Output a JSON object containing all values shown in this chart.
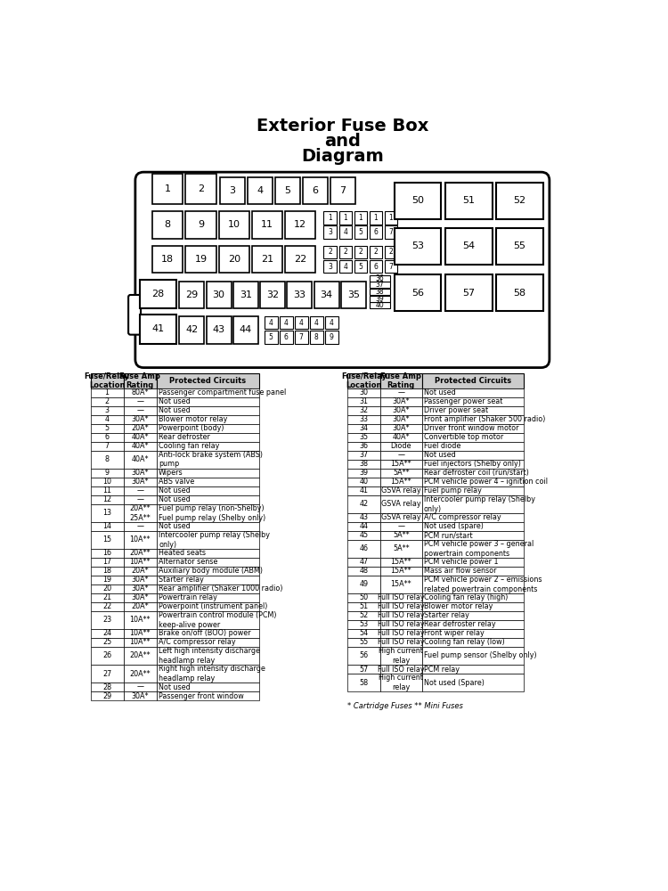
{
  "title_line1": "Exterior Fuse Box",
  "title_line2": "and",
  "title_line3": "Diagram",
  "bg_color": "#ffffff",
  "table1_headers": [
    "Fuse/Relay\nLocation",
    "Fuse Amp\nRating",
    "Protected Circuits"
  ],
  "table1_rows": [
    [
      "1",
      "80A*",
      "Passenger compartment fuse panel"
    ],
    [
      "2",
      "—",
      "Not used"
    ],
    [
      "3",
      "—",
      "Not used"
    ],
    [
      "4",
      "30A*",
      "Blower motor relay"
    ],
    [
      "5",
      "20A*",
      "Powerpoint (body)"
    ],
    [
      "6",
      "40A*",
      "Rear defroster"
    ],
    [
      "7",
      "40A*",
      "Cooling fan relay"
    ],
    [
      "8",
      "40A*",
      "Anti-lock brake system (ABS)\npump"
    ],
    [
      "9",
      "30A*",
      "Wipers"
    ],
    [
      "10",
      "30A*",
      "ABS valve"
    ],
    [
      "11",
      "—",
      "Not used"
    ],
    [
      "12",
      "—",
      "Not used"
    ],
    [
      "13",
      "20A**\n25A**",
      "Fuel pump relay (non-Shelby)\nFuel pump relay (Shelby only)"
    ],
    [
      "14",
      "—",
      "Not used"
    ],
    [
      "15",
      "10A**",
      "Intercooler pump relay (Shelby\nonly)"
    ],
    [
      "16",
      "20A**",
      "Heated seats"
    ],
    [
      "17",
      "10A**",
      "Alternator sense"
    ],
    [
      "18",
      "20A*",
      "Auxiliary body module (ABM)"
    ],
    [
      "19",
      "30A*",
      "Starter relay"
    ],
    [
      "20",
      "30A*",
      "Rear amplifier (Shaker 1000 radio)"
    ],
    [
      "21",
      "30A*",
      "Powertrain relay"
    ],
    [
      "22",
      "20A*",
      "Powerpoint (instrument panel)"
    ],
    [
      "23",
      "10A**",
      "Powertrain control module (PCM)\nkeep-alive power"
    ],
    [
      "24",
      "10A**",
      "Brake on/off (BOO) power"
    ],
    [
      "25",
      "10A**",
      "A/C compressor relay"
    ],
    [
      "26",
      "20A**",
      "Left high intensity discharge\nheadlamp relay"
    ],
    [
      "27",
      "20A**",
      "Right high intensity discharge\nheadlamp relay"
    ],
    [
      "28",
      "—",
      "Not used"
    ],
    [
      "29",
      "30A*",
      "Passenger front window"
    ]
  ],
  "table2_headers": [
    "Fuse/Relay\nLocation",
    "Fuse Amp\nRating",
    "Protected Circuits"
  ],
  "table2_rows": [
    [
      "30",
      "—",
      "Not used"
    ],
    [
      "31",
      "30A*",
      "Passenger power seat"
    ],
    [
      "32",
      "30A*",
      "Driver power seat"
    ],
    [
      "33",
      "30A*",
      "Front amplifier (Shaker 500 radio)"
    ],
    [
      "34",
      "30A*",
      "Driver front window motor"
    ],
    [
      "35",
      "40A*",
      "Convertible top motor"
    ],
    [
      "36",
      "Diode",
      "Fuel diode"
    ],
    [
      "37",
      "—",
      "Not used"
    ],
    [
      "38",
      "15A**",
      "Fuel injectors (Shelby only)"
    ],
    [
      "39",
      "5A**",
      "Rear defroster coil (run/start)"
    ],
    [
      "40",
      "15A**",
      "PCM vehicle power 4 – ignition coil"
    ],
    [
      "41",
      "GSVA relay",
      "Fuel pump relay"
    ],
    [
      "42",
      "GSVA relay",
      "Intercooler pump relay (Shelby\nonly)"
    ],
    [
      "43",
      "GSVA relay",
      "A/C compressor relay"
    ],
    [
      "44",
      "—",
      "Not used (spare)"
    ],
    [
      "45",
      "5A**",
      "PCM run/start"
    ],
    [
      "46",
      "5A**",
      "PCM vehicle power 3 – general\npowertrain components"
    ],
    [
      "47",
      "15A**",
      "PCM vehicle power 1"
    ],
    [
      "48",
      "15A**",
      "Mass air flow sensor"
    ],
    [
      "49",
      "15A**",
      "PCM vehicle power 2 – emissions\nrelated powertrain components"
    ],
    [
      "50",
      "Full ISO relay",
      "Cooling fan relay (high)"
    ],
    [
      "51",
      "Full ISO relay",
      "Blower motor relay"
    ],
    [
      "52",
      "Full ISO relay",
      "Starter relay"
    ],
    [
      "53",
      "Full ISO relay",
      "Rear defroster relay"
    ],
    [
      "54",
      "Full ISO relay",
      "Front wiper relay"
    ],
    [
      "55",
      "Full ISO relay",
      "Cooling fan relay (low)"
    ],
    [
      "56",
      "High current\nrelay",
      "Fuel pump sensor (Shelby only)"
    ],
    [
      "57",
      "Full ISO relay",
      "PCM relay"
    ],
    [
      "58",
      "High current\nrelay",
      "Not used (Spare)"
    ]
  ],
  "footnote": "* Cartridge Fuses ** Mini Fuses"
}
